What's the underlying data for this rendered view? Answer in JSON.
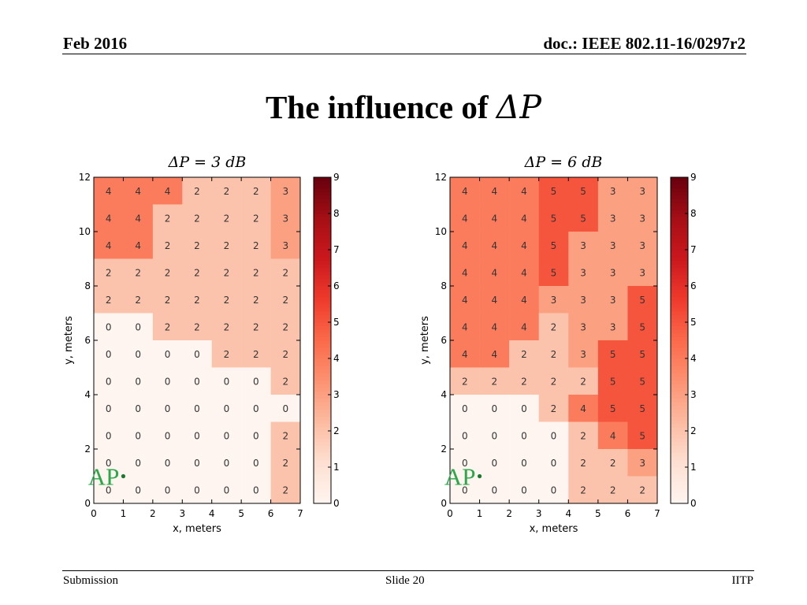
{
  "header": {
    "left": "Feb 2016",
    "right": "doc.: IEEE 802.11-16/0297r2"
  },
  "title": {
    "text": "The influence of ",
    "math": "ΔP"
  },
  "footer": {
    "left": "Submission",
    "center": "Slide 20",
    "right": "IITP"
  },
  "chart_data": [
    {
      "type": "heatmap",
      "title": "ΔP = 3 dB",
      "xlabel": "x, meters",
      "ylabel": "y, meters",
      "xlim": [
        0,
        7
      ],
      "ylim": [
        0,
        12
      ],
      "xticks": [
        "0",
        "1",
        "2",
        "3",
        "4",
        "5",
        "6",
        "7"
      ],
      "yticks": [
        "0",
        "2",
        "4",
        "6",
        "8",
        "10",
        "12"
      ],
      "colorbar": {
        "min": 0,
        "max": 9,
        "ticks": [
          "0",
          "1",
          "2",
          "3",
          "4",
          "5",
          "6",
          "7",
          "8",
          "9"
        ],
        "colormap": "Reds"
      },
      "annotation": {
        "label": "AP",
        "x": 1,
        "y": 1,
        "color": "#2aa84a"
      },
      "rows_top_to_bottom": [
        [
          4,
          4,
          4,
          2,
          2,
          2,
          3
        ],
        [
          4,
          4,
          2,
          2,
          2,
          2,
          3
        ],
        [
          4,
          4,
          2,
          2,
          2,
          2,
          3
        ],
        [
          2,
          2,
          2,
          2,
          2,
          2,
          2
        ],
        [
          2,
          2,
          2,
          2,
          2,
          2,
          2
        ],
        [
          0,
          0,
          2,
          2,
          2,
          2,
          2
        ],
        [
          0,
          0,
          0,
          0,
          2,
          2,
          2
        ],
        [
          0,
          0,
          0,
          0,
          0,
          0,
          2
        ],
        [
          0,
          0,
          0,
          0,
          0,
          0,
          0
        ],
        [
          0,
          0,
          0,
          0,
          0,
          0,
          2
        ],
        [
          0,
          0,
          0,
          0,
          0,
          0,
          2
        ],
        [
          0,
          0,
          0,
          0,
          0,
          0,
          2
        ]
      ]
    },
    {
      "type": "heatmap",
      "title": "ΔP = 6 dB",
      "xlabel": "x, meters",
      "ylabel": "y, meters",
      "xlim": [
        0,
        7
      ],
      "ylim": [
        0,
        12
      ],
      "xticks": [
        "0",
        "1",
        "2",
        "3",
        "4",
        "5",
        "6",
        "7"
      ],
      "yticks": [
        "0",
        "2",
        "4",
        "6",
        "8",
        "10",
        "12"
      ],
      "colorbar": {
        "min": 0,
        "max": 9,
        "ticks": [
          "0",
          "1",
          "2",
          "3",
          "4",
          "5",
          "6",
          "7",
          "8",
          "9"
        ],
        "colormap": "Reds"
      },
      "annotation": {
        "label": "AP",
        "x": 1,
        "y": 1,
        "color": "#2aa84a"
      },
      "rows_top_to_bottom": [
        [
          4,
          4,
          4,
          5,
          5,
          3,
          3
        ],
        [
          4,
          4,
          4,
          5,
          5,
          3,
          3
        ],
        [
          4,
          4,
          4,
          5,
          3,
          3,
          3
        ],
        [
          4,
          4,
          4,
          5,
          3,
          3,
          3
        ],
        [
          4,
          4,
          4,
          3,
          3,
          3,
          5
        ],
        [
          4,
          4,
          4,
          2,
          3,
          3,
          5
        ],
        [
          4,
          4,
          2,
          2,
          3,
          5,
          5
        ],
        [
          2,
          2,
          2,
          2,
          2,
          5,
          5
        ],
        [
          0,
          0,
          0,
          2,
          4,
          5,
          5
        ],
        [
          0,
          0,
          0,
          0,
          2,
          4,
          5
        ],
        [
          0,
          0,
          0,
          0,
          2,
          2,
          3
        ],
        [
          0,
          0,
          0,
          0,
          2,
          2,
          2
        ]
      ]
    }
  ]
}
